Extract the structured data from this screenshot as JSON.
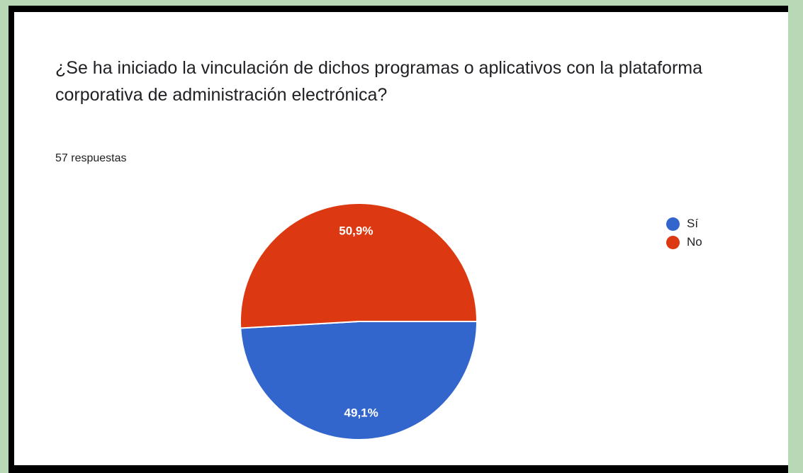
{
  "question": "¿Se ha iniciado la vinculación de dichos programas o aplicativos con la plataforma corporativa de administración electrónica?",
  "responses": "57 respuestas",
  "colors": {
    "si": "#3366cc",
    "no": "#dc3912",
    "label_text": "#ffffff"
  },
  "legend": [
    {
      "label": "Sí",
      "color": "#3366cc"
    },
    {
      "label": "No",
      "color": "#dc3912"
    }
  ],
  "chart_data": {
    "type": "pie",
    "title": "¿Se ha iniciado la vinculación de dichos programas o aplicativos con la plataforma corporativa de administración electrónica?",
    "legend_position": "top-right",
    "slices": [
      {
        "name": "Sí",
        "value": 49.1,
        "label": "49,1%",
        "color": "#3366cc"
      },
      {
        "name": "No",
        "value": 50.9,
        "label": "50,9%",
        "color": "#dc3912"
      }
    ]
  }
}
